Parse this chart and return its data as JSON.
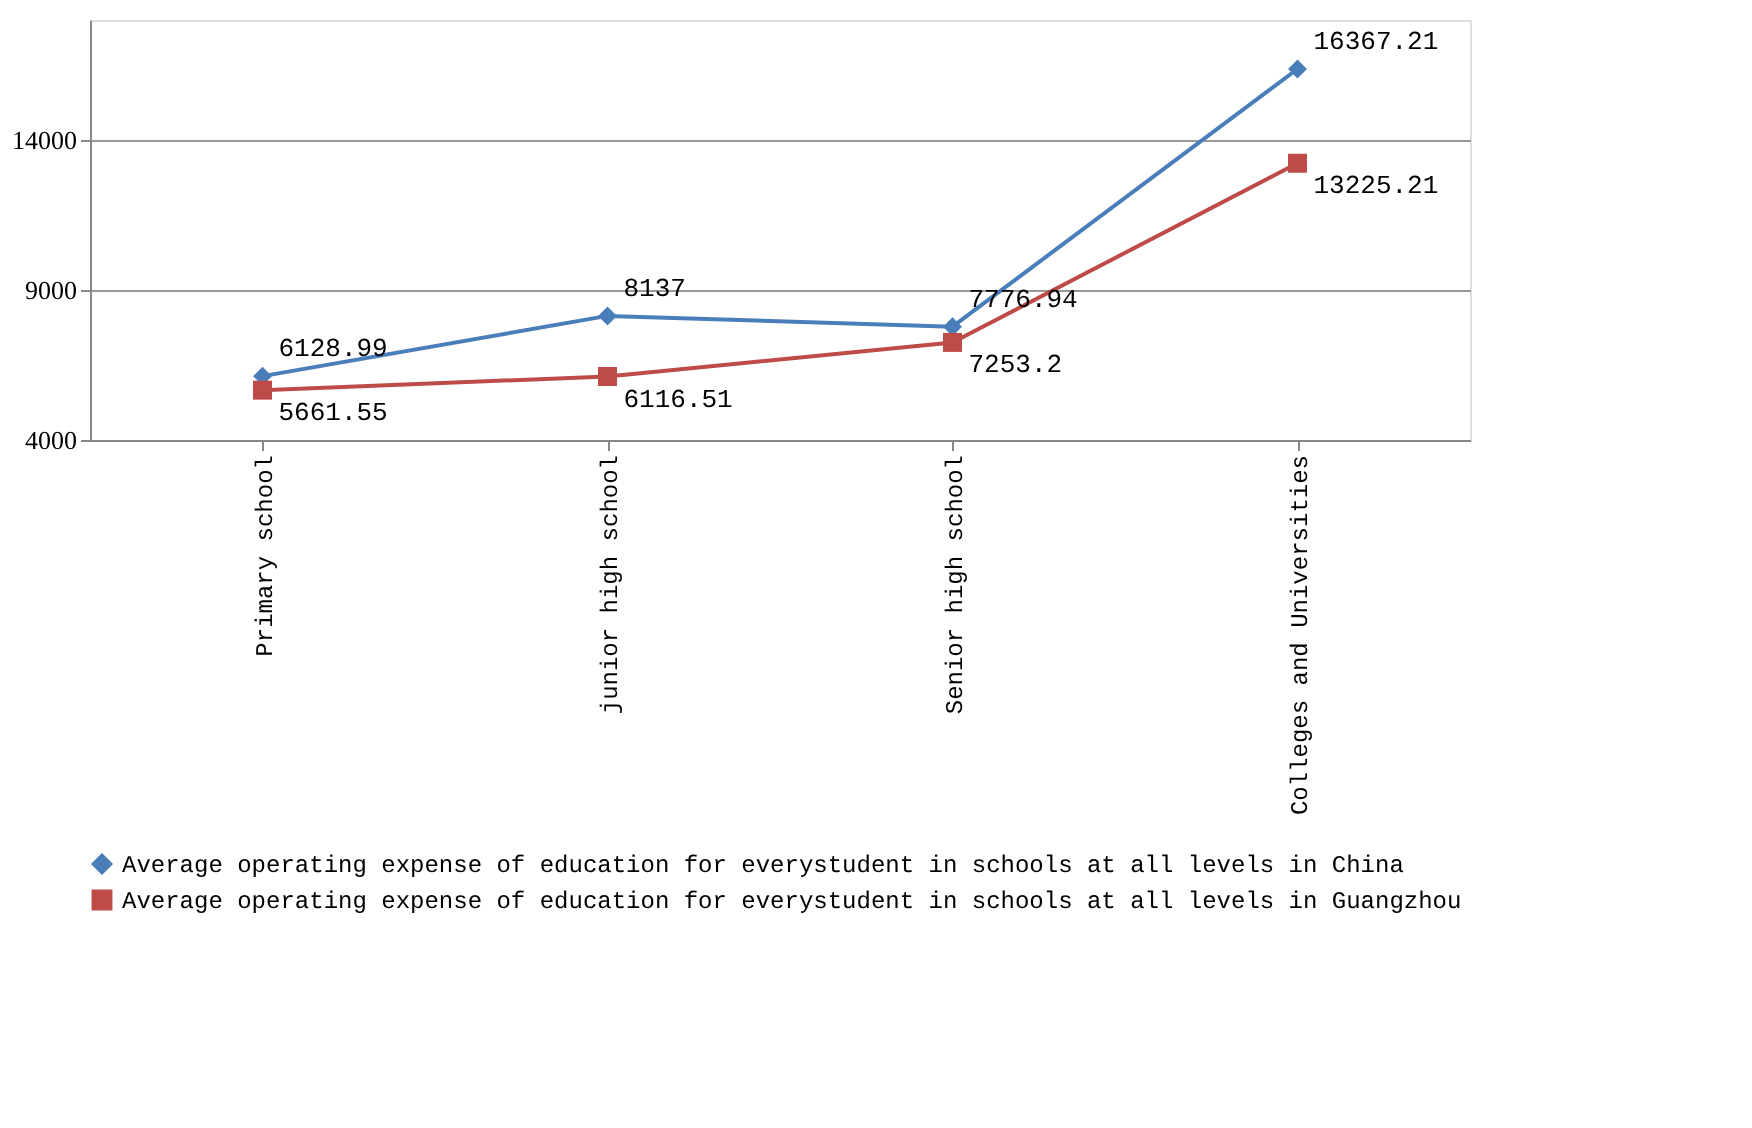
{
  "chart_data": {
    "type": "line",
    "categories": [
      "Primary school",
      "junior high school",
      "Senior high school",
      "Colleges and Universities"
    ],
    "series": [
      {
        "name": "Average operating expense of education for everystudent in schools at all levels in China",
        "color": "#4a7ebb",
        "marker": "diamond",
        "values": [
          6128.99,
          8137,
          7776.94,
          16367.21
        ]
      },
      {
        "name": "Average operating expense of education for everystudent in schools at all levels in Guangzhou",
        "color": "#be4b48",
        "marker": "square",
        "values": [
          5661.55,
          6116.51,
          7253.2,
          13225.21
        ]
      }
    ],
    "ylim": [
      4000,
      18000
    ],
    "yticks": [
      4000,
      9000,
      14000
    ],
    "grid": "y",
    "legend": "bottom",
    "data_labels": true
  }
}
